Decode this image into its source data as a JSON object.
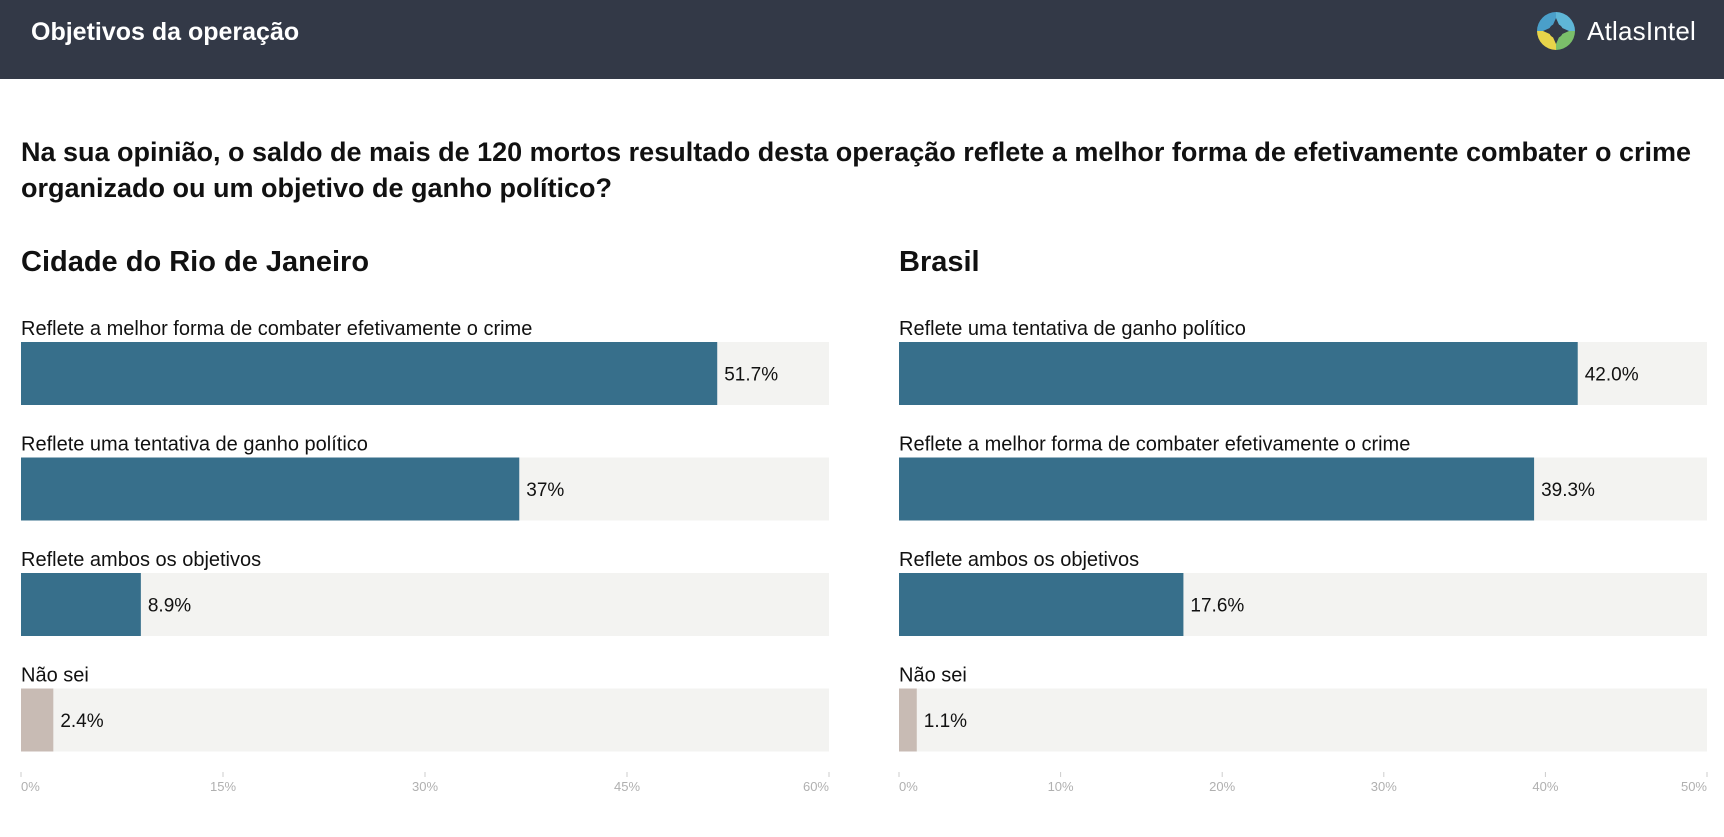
{
  "header": {
    "title": "Objetivos da operação",
    "brand": "AtlasIntel"
  },
  "question": "Na sua opinião, o saldo de mais de 120 mortos resultado desta operação reflete a melhor forma de efetivamente combater o crime organizado ou um objetivo de ganho político?",
  "colors": {
    "header_bg": "#333947",
    "bar_primary": "#376f8b",
    "bar_unknown": "#c8bbb4",
    "bar_track": "#f3f3f1",
    "tick_text": "#b0b0b0"
  },
  "chart_data": [
    {
      "type": "bar",
      "orientation": "horizontal",
      "title": "Cidade do Rio de Janeiro",
      "categories": [
        "Reflete a melhor forma de combater efetivamente o crime",
        "Reflete uma tentativa de ganho político",
        "Reflete ambos os objetivos",
        "Não sei"
      ],
      "values": [
        51.7,
        37,
        8.9,
        2.4
      ],
      "value_labels": [
        "51.7%",
        "37%",
        "8.9%",
        "2.4%"
      ],
      "xlim": [
        0,
        60
      ],
      "ticks": [
        0,
        15,
        30,
        45,
        60
      ],
      "tick_labels": [
        "0%",
        "15%",
        "30%",
        "45%",
        "60%"
      ],
      "grid": false
    },
    {
      "type": "bar",
      "orientation": "horizontal",
      "title": "Brasil",
      "categories": [
        "Reflete uma tentativa de ganho político",
        "Reflete a melhor forma de combater efetivamente o crime",
        "Reflete ambos os objetivos",
        "Não sei"
      ],
      "values": [
        42.0,
        39.3,
        17.6,
        1.1
      ],
      "value_labels": [
        "42.0%",
        "39.3%",
        "17.6%",
        "1.1%"
      ],
      "xlim": [
        0,
        50
      ],
      "ticks": [
        0,
        10,
        20,
        30,
        40,
        50
      ],
      "tick_labels": [
        "0%",
        "10%",
        "20%",
        "30%",
        "40%",
        "50%"
      ],
      "grid": false
    }
  ]
}
